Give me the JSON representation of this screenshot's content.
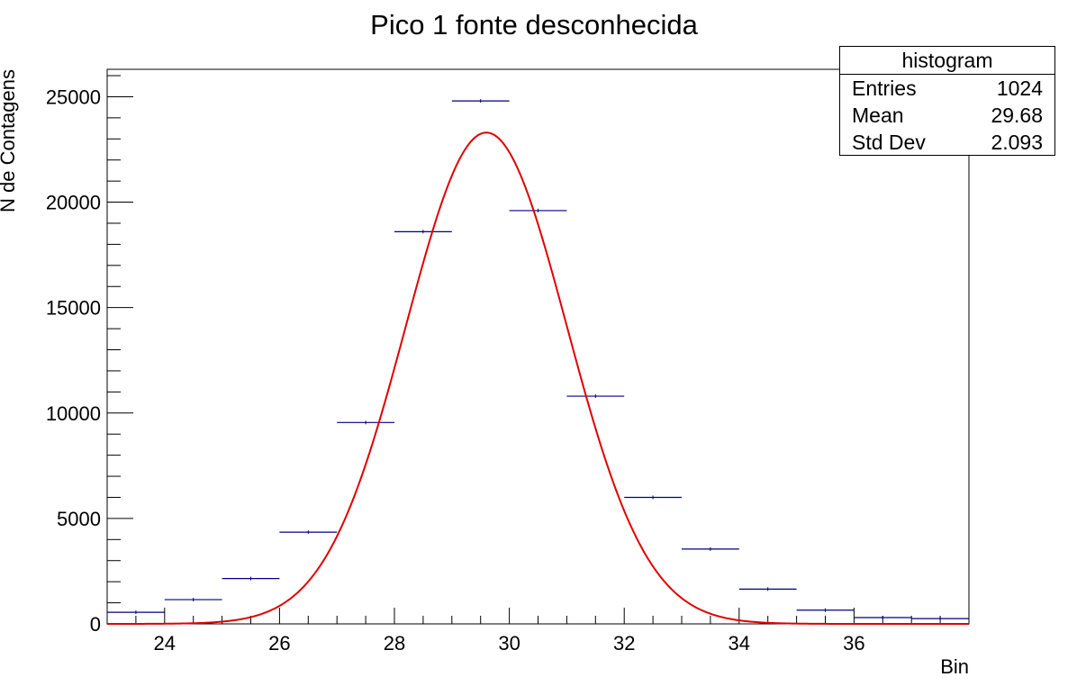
{
  "chart_data": {
    "type": "histogram",
    "title": "Pico 1 fonte desconhecida",
    "xlabel": "Bin",
    "ylabel": "N de Contagens",
    "xlim": [
      23,
      38
    ],
    "ylim": [
      0,
      26300
    ],
    "x_ticks": [
      24,
      26,
      28,
      30,
      32,
      34,
      36
    ],
    "y_ticks": [
      0,
      5000,
      10000,
      15000,
      20000,
      25000
    ],
    "bins": {
      "edges": [
        23,
        24,
        25,
        26,
        27,
        28,
        29,
        30,
        31,
        32,
        33,
        34,
        35,
        36,
        37,
        38
      ],
      "values": [
        550,
        1150,
        2150,
        4350,
        9550,
        18600,
        24800,
        19600,
        10800,
        6000,
        3550,
        1650,
        650,
        300,
        250
      ]
    },
    "fit": {
      "name": "gaus",
      "amplitude": 23300,
      "mean": 29.6,
      "sigma": 1.4
    },
    "colors": {
      "histogram": "#00007f",
      "fit": "#e00000",
      "axis": "#000000"
    },
    "grid": false,
    "legend_position": "top-right"
  },
  "stats": {
    "title": "histogram",
    "rows": [
      {
        "label": "Entries",
        "value": "1024"
      },
      {
        "label": "Mean",
        "value": "29.68"
      },
      {
        "label": "Std Dev",
        "value": "2.093"
      }
    ]
  }
}
